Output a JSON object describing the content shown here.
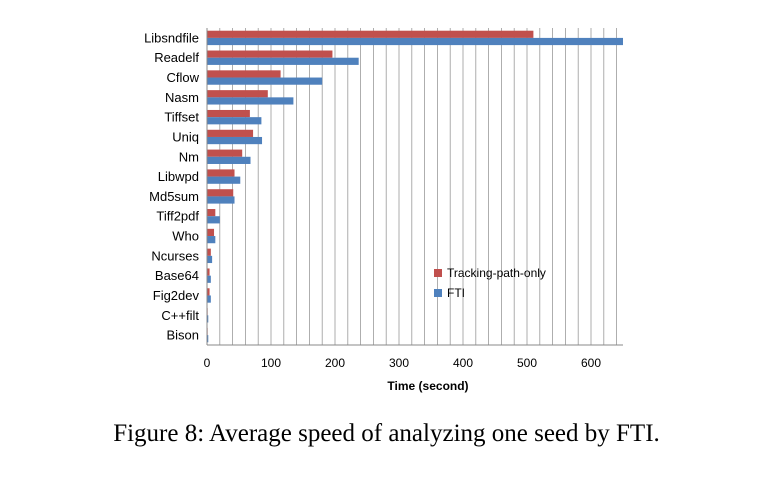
{
  "caption": "Figure 8: Average speed of analyzing one seed by FTI.",
  "chart_data": {
    "type": "bar",
    "orientation": "horizontal",
    "title": "",
    "xlabel": "Time (second)",
    "ylabel": "",
    "xlim": [
      0,
      650
    ],
    "xticks": [
      0,
      100,
      200,
      300,
      400,
      500,
      600
    ],
    "grid": true,
    "legend_position": "lower-right",
    "categories": [
      "Libsndfile",
      "Readelf",
      "Cflow",
      "Nasm",
      "Tiffset",
      "Uniq",
      "Nm",
      "Libwpd",
      "Md5sum",
      "Tiff2pdf",
      "Who",
      "Ncurses",
      "Base64",
      "Fig2dev",
      "C++filt",
      "Bison"
    ],
    "series": [
      {
        "name": "Tracking-path-only",
        "color": "#c0504d",
        "values": [
          510,
          196,
          115,
          95,
          67,
          72,
          55,
          43,
          41,
          13,
          11,
          6,
          4,
          4,
          1,
          1
        ]
      },
      {
        "name": "FTI",
        "color": "#4f81bd",
        "values": [
          650,
          237,
          180,
          135,
          85,
          86,
          68,
          52,
          43,
          20,
          13,
          8,
          6,
          6,
          2,
          2
        ]
      }
    ]
  }
}
